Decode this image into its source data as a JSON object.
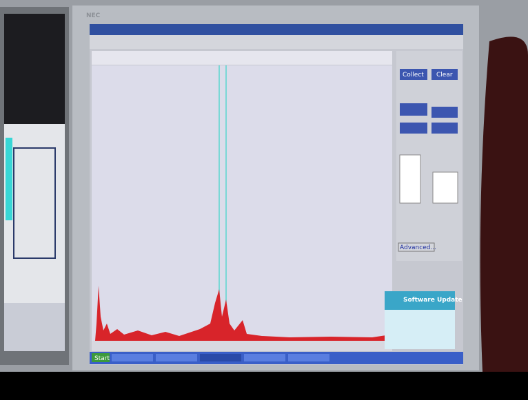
{
  "monitor": {
    "brand": "NEC"
  },
  "app": {
    "buttons": {
      "collect": "Collect",
      "clear": "Clear",
      "advanced": "Advanced..."
    }
  },
  "popup": {
    "title": "Software Update"
  },
  "taskbar": {
    "start": "Start"
  }
}
